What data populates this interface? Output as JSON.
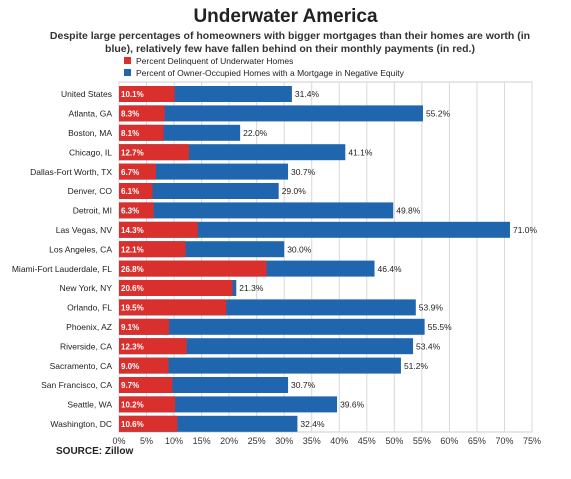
{
  "chart_data": {
    "type": "bar",
    "title": "Underwater America",
    "subtitle": "Despite large percentages of homeowners with bigger mortgages than their homes are worth (in blue), relatively few have fallen behind on their monthly payments (in red.)",
    "categories": [
      "United States",
      "Atlanta, GA",
      "Boston, MA",
      "Chicago, IL",
      "Dallas-Fort Worth, TX",
      "Denver, CO",
      "Detroit, MI",
      "Las Vegas, NV",
      "Los Angeles, CA",
      "Miami-Fort Lauderdale, FL",
      "New York, NY",
      "Orlando, FL",
      "Phoenix, AZ",
      "Riverside, CA",
      "Sacramento, CA",
      "San Francisco, CA",
      "Seattle, WA",
      "Washington, DC"
    ],
    "series": [
      {
        "name": "Percent Delinquent of Underwater Homes",
        "color": "#d9302e",
        "values": [
          10.1,
          8.3,
          8.1,
          12.7,
          6.7,
          6.1,
          6.3,
          14.3,
          12.1,
          26.8,
          20.6,
          19.5,
          9.1,
          12.3,
          9.0,
          9.7,
          10.2,
          10.6
        ],
        "labels": [
          "10.1%",
          "8.3%",
          "8.1%",
          "12.7%",
          "6.7%",
          "6.1%",
          "6.3%",
          "14.3%",
          "12.1%",
          "26.8%",
          "20.6%",
          "19.5%",
          "9.1%",
          "12.3%",
          "9.0%",
          "9.7%",
          "10.2%",
          "10.6%"
        ]
      },
      {
        "name": "Percent of Owner-Occupied Homes with a Mortgage in Negative Equity",
        "color": "#1f66ae",
        "values": [
          31.4,
          55.2,
          22.0,
          41.1,
          30.7,
          29.0,
          49.8,
          71.0,
          30.0,
          46.4,
          21.3,
          53.9,
          55.5,
          53.4,
          51.2,
          30.7,
          39.6,
          32.4
        ],
        "labels": [
          "31.4%",
          "55.2%",
          "22.0%",
          "41.1%",
          "30.7%",
          "29.0%",
          "49.8%",
          "71.0%",
          "30.0%",
          "46.4%",
          "21.3%",
          "53.9%",
          "55.5%",
          "53.4%",
          "51.2%",
          "30.7%",
          "39.6%",
          "32.4%"
        ]
      }
    ],
    "xlim": [
      0,
      75
    ],
    "xticks": [
      "0%",
      "5%",
      "10%",
      "15%",
      "20%",
      "25%",
      "30%",
      "35%",
      "40%",
      "45%",
      "50%",
      "55%",
      "60%",
      "65%",
      "70%",
      "75%"
    ],
    "legend_position": "top-left",
    "grid": true,
    "source": "SOURCE: Zillow"
  }
}
